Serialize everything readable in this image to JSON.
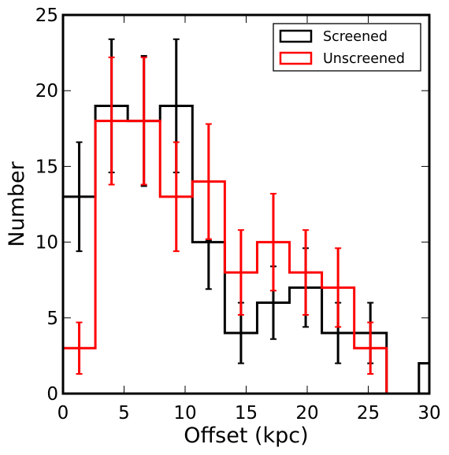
{
  "chart_data": {
    "type": "histogram",
    "title": "",
    "xlabel": "Offset (kpc)",
    "ylabel": "Number",
    "xlim": [
      0,
      30
    ],
    "ylim": [
      0,
      25
    ],
    "xticks": [
      0,
      5,
      10,
      15,
      20,
      25,
      30
    ],
    "yticks": [
      0,
      5,
      10,
      15,
      20,
      25
    ],
    "grid": false,
    "legend_position": "top-right",
    "bin_edges": [
      0,
      2.65,
      5.3,
      7.95,
      10.6,
      13.25,
      15.9,
      18.55,
      21.2,
      23.85,
      26.5,
      29.15,
      31.8
    ],
    "series": [
      {
        "name": "Screened",
        "color": "#000000",
        "counts": [
          13,
          19,
          18,
          19,
          10,
          4,
          6,
          7,
          4,
          4,
          0,
          2
        ],
        "error_low": [
          9.4,
          14.6,
          13.7,
          14.6,
          6.9,
          2.0,
          3.6,
          4.4,
          2.0,
          2.0,
          null,
          null
        ],
        "error_high": [
          16.6,
          23.4,
          22.3,
          23.4,
          10.1,
          6.0,
          8.4,
          9.6,
          6.0,
          6.0,
          null,
          null
        ]
      },
      {
        "name": "Unscreened",
        "color": "#ff0000",
        "counts": [
          3,
          18,
          18,
          13,
          14,
          8,
          10,
          8,
          7,
          3,
          0,
          0
        ],
        "error_low": [
          1.3,
          13.8,
          13.8,
          9.4,
          10.2,
          5.2,
          6.8,
          5.2,
          4.4,
          1.3,
          null,
          null
        ],
        "error_high": [
          4.7,
          22.2,
          22.2,
          16.6,
          17.8,
          10.8,
          13.2,
          10.8,
          9.6,
          4.7,
          null,
          null
        ]
      }
    ]
  }
}
